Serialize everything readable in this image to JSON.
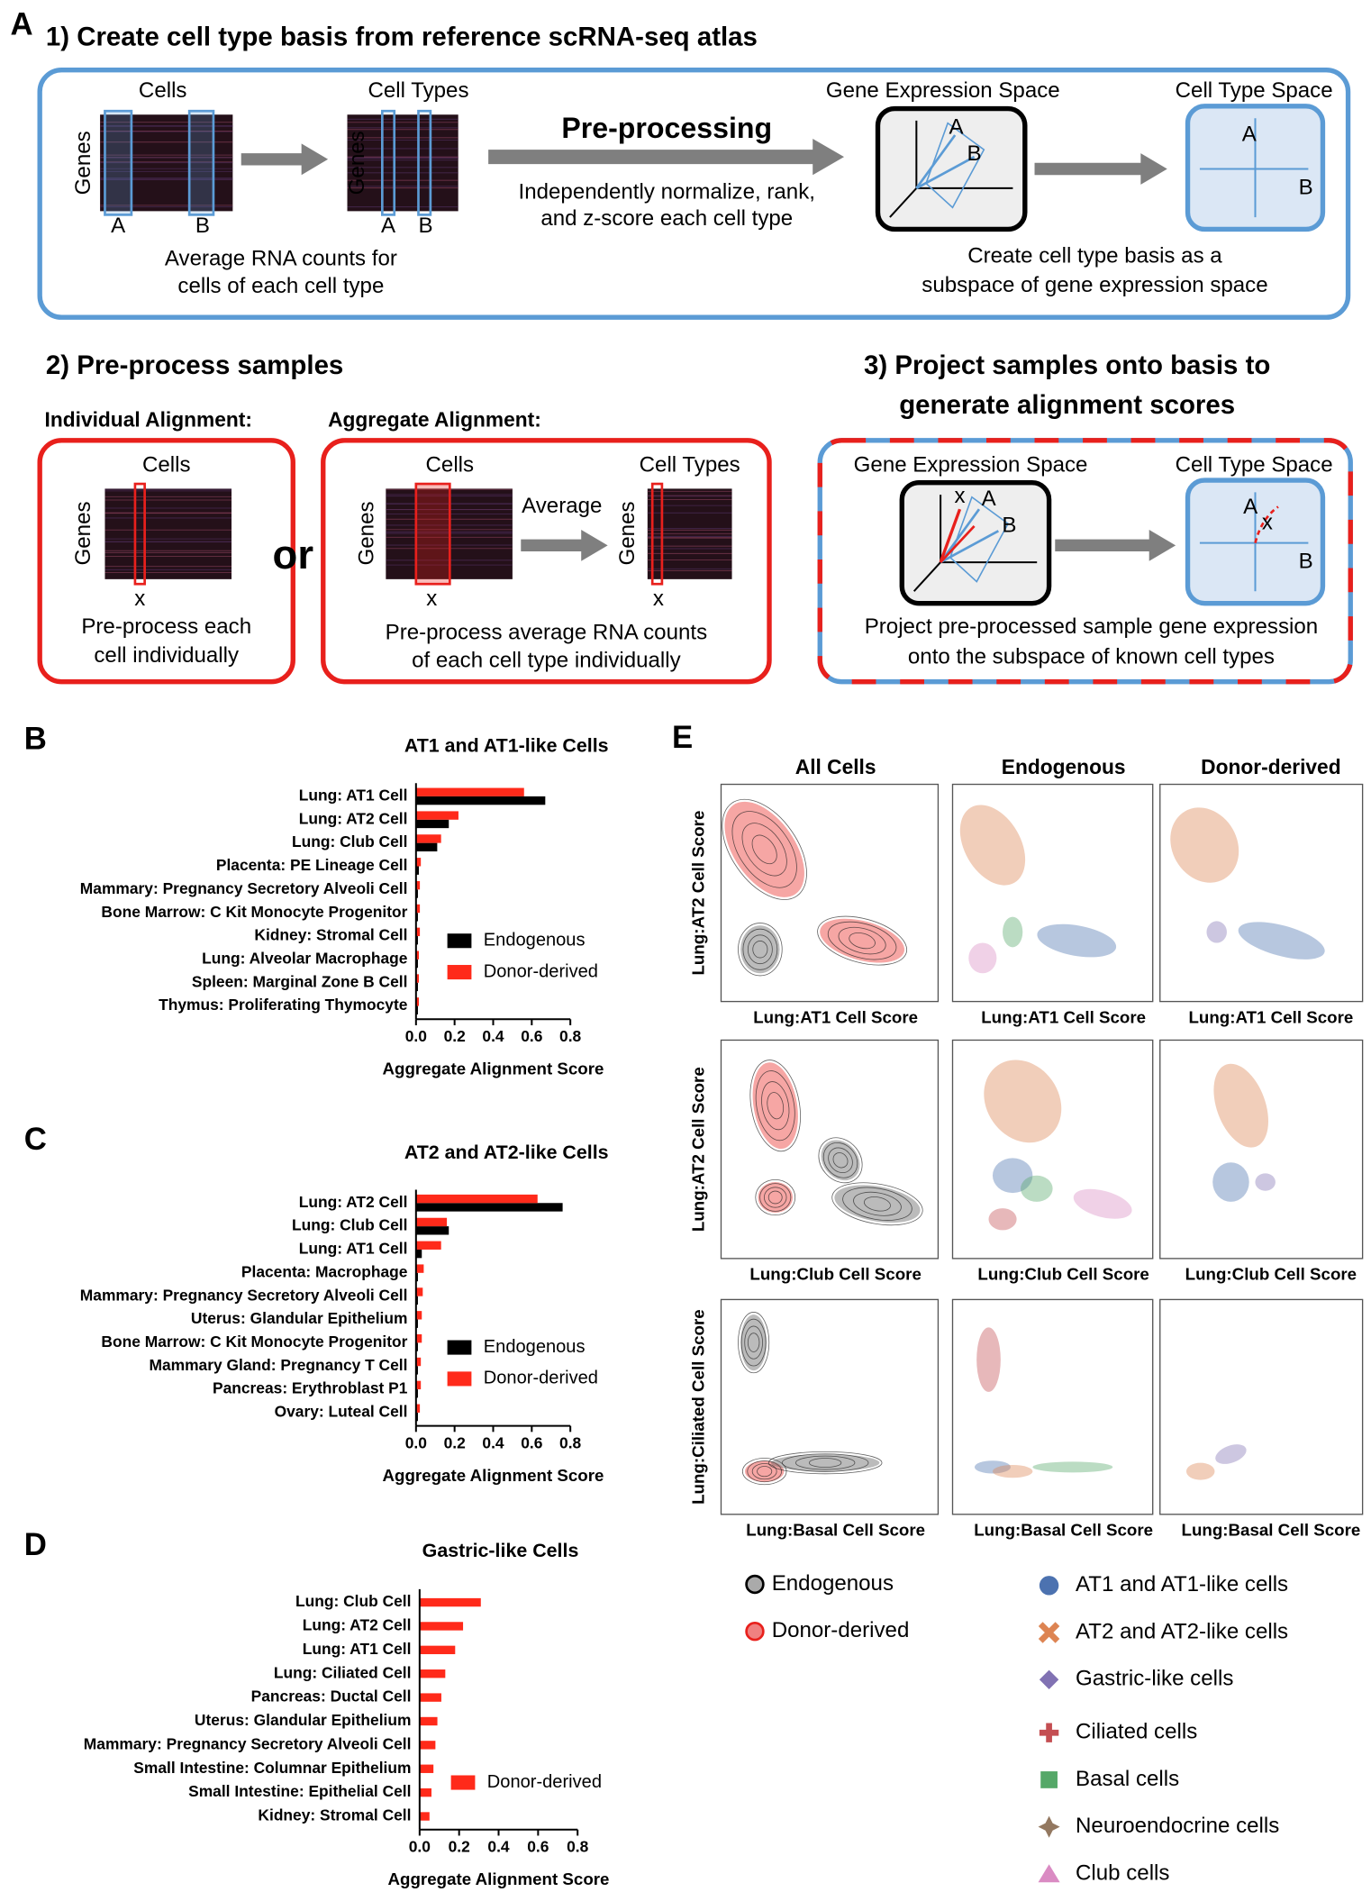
{
  "panel_a": {
    "label": "A",
    "title": "1) Create cell type basis from reference scRNA-seq atlas",
    "cells": "Cells",
    "genes": "Genes",
    "col_a": "A",
    "col_b": "B",
    "cell_types": "Cell Types",
    "genes_2": "Genes",
    "col_a_2": "A",
    "col_b_2": "B",
    "average_note": [
      "Average RNA counts for",
      "cells of each cell type"
    ],
    "preprocessing": "Pre-processing",
    "preprocessing_note": [
      "Independently normalize, rank,",
      "and z-score each cell type"
    ],
    "gene_space": "Gene Expression Space",
    "gene_space_a": "A",
    "gene_space_b": "B",
    "cell_type_space": "Cell Type Space",
    "cell_space_a": "A",
    "cell_space_b": "B",
    "basis_note": [
      "Create cell type basis as a",
      "subspace of gene expression space"
    ]
  },
  "panel_2": {
    "title": "2) Pre-process samples",
    "individual": "Individual Alignment:",
    "aggregate": "Aggregate Alignment:",
    "cells": "Cells",
    "genes": "Genes",
    "x": "x",
    "individual_note": [
      "Pre-process each",
      "cell individually"
    ],
    "or": "or",
    "cells_2": "Cells",
    "genes_2": "Genes",
    "x_2": "x",
    "average": "Average",
    "cell_types": "Cell Types",
    "genes_3": "Genes",
    "x_3": "x",
    "aggregate_note": [
      "Pre-process average RNA counts",
      "of each cell type individually"
    ]
  },
  "panel_3": {
    "title": [
      "3) Project samples onto basis to",
      "generate alignment scores"
    ],
    "gene_space": "Gene Expression Space",
    "gene_space_x": "x",
    "gene_space_a": "A",
    "gene_space_b": "B",
    "cell_type_space": "Cell Type Space",
    "cell_space_a": "A",
    "cell_space_x": "x",
    "cell_space_b": "B",
    "note": [
      "Project pre-processed sample gene expression",
      "onto the subspace of known cell types"
    ]
  },
  "chart_data": [
    {
      "type": "bar",
      "orientation": "horizontal",
      "panel": "B",
      "title": "AT1 and AT1-like Cells",
      "categories": [
        "Lung: AT1 Cell",
        "Lung: AT2 Cell",
        "Lung: Club Cell",
        "Placenta: PE Lineage Cell",
        "Mammary: Pregnancy Secretory Alveoli Cell",
        "Bone Marrow: C Kit Monocyte Progenitor",
        "Kidney: Stromal Cell",
        "Lung: Alveolar Macrophage",
        "Spleen: Marginal Zone B Cell",
        "Thymus: Proliferating Thymocyte"
      ],
      "series": [
        {
          "name": "Endogenous",
          "color": "#000000",
          "values": [
            0.67,
            0.17,
            0.11,
            0.015,
            0.01,
            0.01,
            0.01,
            0.01,
            0.01,
            0.01
          ]
        },
        {
          "name": "Donor-derived",
          "color": "#ff2a1a",
          "values": [
            0.56,
            0.22,
            0.13,
            0.025,
            0.02,
            0.02,
            0.02,
            0.015,
            0.015,
            0.015
          ]
        }
      ],
      "xlim": [
        0,
        0.8
      ],
      "xticks": [
        {
          "value": 0,
          "label": "0.0"
        },
        0.2,
        0.4,
        0.6,
        0.8
      ],
      "xlabel": "Aggregate Alignment Score",
      "legend": "lower right"
    },
    {
      "type": "bar",
      "orientation": "horizontal",
      "panel": "C",
      "title": "AT2 and AT2-like Cells",
      "categories": [
        "Lung: AT2 Cell",
        "Lung: Club Cell",
        "Lung: AT1 Cell",
        "Placenta: Macrophage",
        "Mammary: Pregnancy Secretory Alveoli Cell",
        "Uterus: Glandular Epithelium",
        "Bone Marrow: C Kit Monocyte Progenitor",
        "Mammary Gland: Pregnancy T Cell",
        "Pancreas: Erythroblast P1",
        "Ovary: Luteal Cell"
      ],
      "series": [
        {
          "name": "Endogenous",
          "color": "#000000",
          "values": [
            0.76,
            0.17,
            0.03,
            0.01,
            0.01,
            0.01,
            0.01,
            0.01,
            0.01,
            0.01
          ]
        },
        {
          "name": "Donor-derived",
          "color": "#ff2a1a",
          "values": [
            0.63,
            0.16,
            0.13,
            0.04,
            0.035,
            0.03,
            0.03,
            0.025,
            0.025,
            0.02
          ]
        }
      ],
      "xlim": [
        0,
        0.8
      ],
      "xticks": [
        {
          "value": 0,
          "label": "0.0"
        },
        0.2,
        0.4,
        0.6,
        0.8
      ],
      "xlabel": "Aggregate Alignment Score",
      "legend": "lower right"
    },
    {
      "type": "bar",
      "orientation": "horizontal",
      "panel": "D",
      "title": "Gastric-like Cells",
      "categories": [
        "Lung: Club Cell",
        "Lung: AT2 Cell",
        "Lung: AT1 Cell",
        "Lung: Ciliated Cell",
        "Pancreas: Ductal Cell",
        "Uterus: Glandular Epithelium",
        "Mammary: Pregnancy Secretory Alveoli Cell",
        "Small Intestine: Columnar Epithelium",
        "Small Intestine: Epithelial Cell",
        "Kidney: Stromal Cell"
      ],
      "series": [
        {
          "name": "Donor-derived",
          "color": "#ff2a1a",
          "values": [
            0.31,
            0.22,
            0.18,
            0.13,
            0.11,
            0.09,
            0.08,
            0.07,
            0.06,
            0.05
          ]
        }
      ],
      "xlim": [
        0,
        0.8
      ],
      "xticks": [
        {
          "value": 0,
          "label": "0.0"
        },
        0.2,
        0.4,
        0.6,
        0.8
      ],
      "xlabel": "Aggregate Alignment Score",
      "legend": "lower right"
    }
  ],
  "panel_e": {
    "label": "E",
    "columns": [
      "All Cells",
      "Endogenous",
      "Donor-derived"
    ],
    "ylabels": [
      "Lung:AT2 Cell Score",
      "Lung:AT2 Cell Score",
      "Lung:Ciliated Cell Score"
    ],
    "xlabels": [
      [
        "Lung:AT1 Cell Score",
        "Lung:AT1 Cell Score",
        "Lung:AT1 Cell Score"
      ],
      [
        "Lung:Club Cell Score",
        "Lung:Club Cell Score",
        "Lung:Club Cell Score"
      ],
      [
        "Lung:Basal Cell Score",
        "Lung:Basal Cell Score",
        "Lung:Basal Cell Score"
      ]
    ],
    "origin_legend": [
      "Endogenous",
      "Donor-derived"
    ],
    "type_legend": [
      "AT1 and AT1-like cells",
      "AT2 and AT2-like cells",
      "Gastric-like cells",
      "Ciliated cells",
      "Basal cells",
      "Neuroendocrine cells",
      "Club cells"
    ]
  }
}
